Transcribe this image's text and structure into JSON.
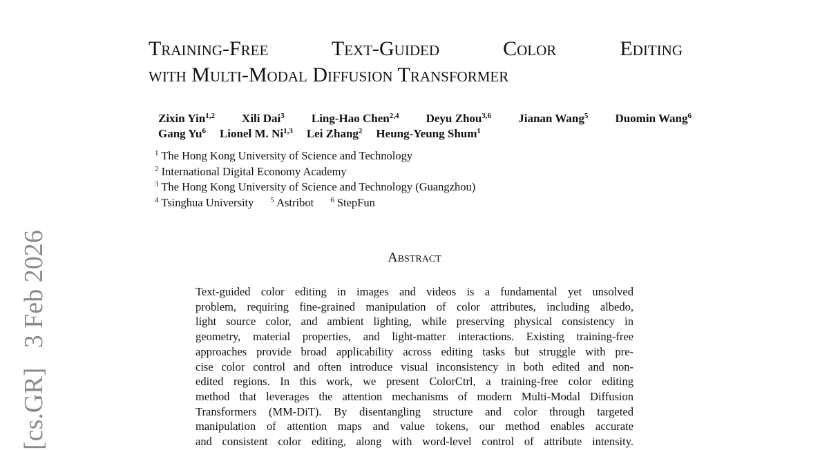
{
  "side_stamp": "[cs.GR]   3 Feb 2026",
  "title": {
    "lines": [
      "Training-Free Text-Guided Color Editing",
      "with Multi-Modal Diffusion Transformer"
    ]
  },
  "authors": {
    "lines": [
      [
        {
          "name": "Zixin Yin",
          "affil": "1,2"
        },
        {
          "name": "Xili Dai",
          "affil": "3"
        },
        {
          "name": "Ling-Hao Chen",
          "affil": "2,4"
        },
        {
          "name": "Deyu Zhou",
          "affil": "3,6"
        },
        {
          "name": "Jianan Wang",
          "affil": "5"
        },
        {
          "name": "Duomin Wang",
          "affil": "6"
        }
      ],
      [
        {
          "name": "Gang Yu",
          "affil": "6"
        },
        {
          "name": "Lionel M. Ni",
          "affil": "1,3"
        },
        {
          "name": "Lei Zhang",
          "affil": "2"
        },
        {
          "name": "Heung-Yeung Shum",
          "affil": "1"
        }
      ]
    ]
  },
  "affiliations": {
    "lines": [
      [
        {
          "num": "1",
          "name": "The Hong Kong University of Science and Technology"
        }
      ],
      [
        {
          "num": "2",
          "name": "International Digital Economy Academy"
        }
      ],
      [
        {
          "num": "3",
          "name": "The Hong Kong University of Science and Technology (Guangzhou)"
        }
      ],
      [
        {
          "num": "4",
          "name": "Tsinghua University"
        },
        {
          "num": "5",
          "name": "Astribot"
        },
        {
          "num": "6",
          "name": "StepFun"
        }
      ]
    ]
  },
  "abstract": {
    "heading": "Abstract",
    "lines": [
      "Text-guided color editing in images and videos is a fundamental yet unsolved",
      "problem, requiring fine-grained manipulation of color attributes, including albedo,",
      "light source color, and ambient lighting, while preserving physical consistency in",
      "geometry, material properties, and light-matter interactions. Existing training-free",
      "approaches provide broad applicability across editing tasks but struggle with pre-",
      "cise color control and often introduce visual inconsistency in both edited and non-",
      "edited regions.  In this work, we present ColorCtrl, a training-free color editing",
      "method that leverages the attention mechanisms of modern Multi-Modal Diffusion",
      "Transformers (MM-DiT). By disentangling structure and color through targeted",
      "manipulation of attention maps and value tokens, our method enables accurate",
      "and consistent color editing, along with word-level control of attribute intensity."
    ]
  }
}
